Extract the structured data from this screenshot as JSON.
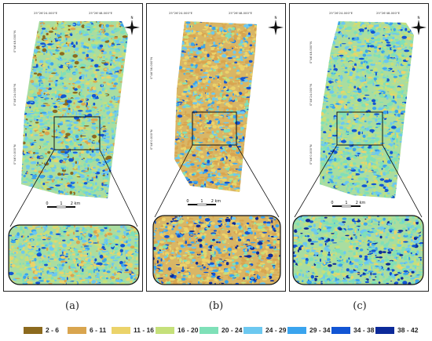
{
  "panels": [
    {
      "id": "a",
      "caption": "(a)",
      "coords_top": [
        "25°26'24.000\"E",
        "25°26'48.000\"E"
      ],
      "coords_left": [
        "0°46'48.000\"N",
        "0°46'24.000\"N",
        "0°46'0.000\"N"
      ]
    },
    {
      "id": "b",
      "caption": "(b)",
      "coords_top": [
        "25°26'24.000\"E",
        "25°26'48.000\"E"
      ],
      "coords_left": [
        "0°46'36.000\"N",
        "0°46'0.000\"N"
      ]
    },
    {
      "id": "c",
      "caption": "(c)",
      "coords_top": [
        "25°26'24.000\"E",
        "25°26'48.000\"E"
      ],
      "coords_left": [
        "0°46'48.000\"N",
        "0°46'24.000\"N",
        "0°46'0.000\"N"
      ]
    }
  ],
  "north_arrow": {
    "label": "N",
    "icon": "north-arrow-icon"
  },
  "scale_bar": {
    "labels": [
      "0",
      "1",
      "2 km"
    ]
  },
  "legend": [
    {
      "label": "2 - 6",
      "color": "#8c6a1e"
    },
    {
      "label": "6 - 11",
      "color": "#d9a54f"
    },
    {
      "label": "11 - 16",
      "color": "#ebd36a"
    },
    {
      "label": "16 - 20",
      "color": "#c5e07a"
    },
    {
      "label": "20 - 24",
      "color": "#7fe0b8"
    },
    {
      "label": "24 - 29",
      "color": "#6cc8f0"
    },
    {
      "label": "29 - 34",
      "color": "#3aa4ee"
    },
    {
      "label": "34 - 38",
      "color": "#1255d4"
    },
    {
      "label": "38 - 42",
      "color": "#0c2a9a"
    }
  ]
}
